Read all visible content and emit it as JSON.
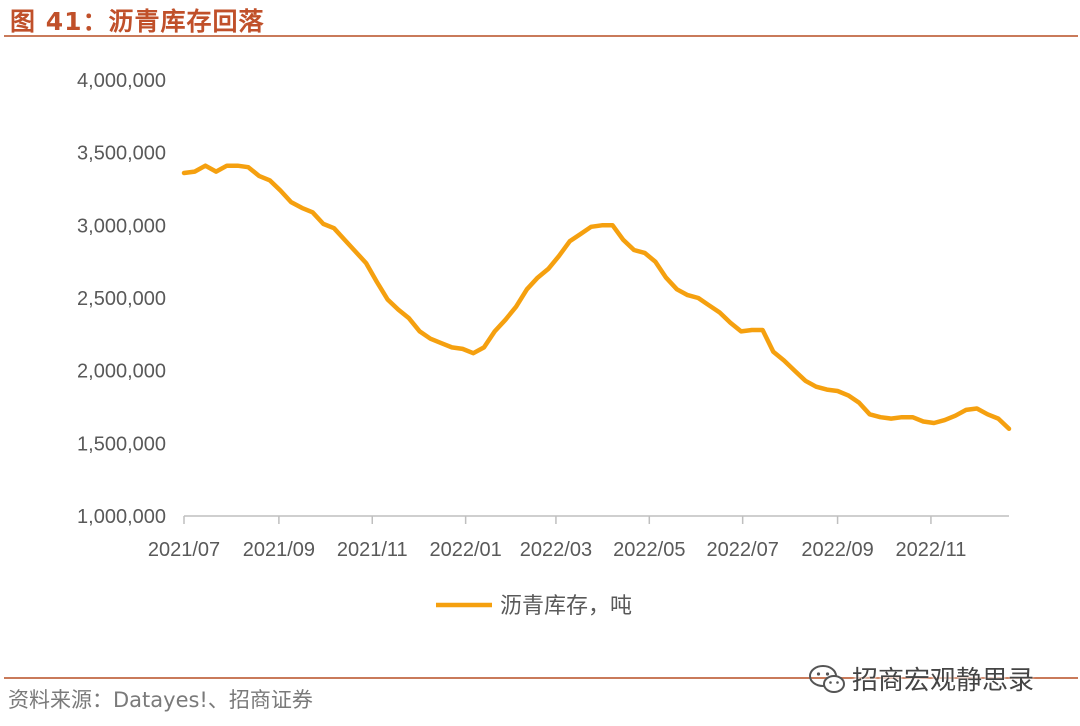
{
  "header": {
    "title": "图 41：沥青库存回落"
  },
  "footer": {
    "source": "资料来源：Datayes!、招商证券"
  },
  "watermark": {
    "text": "招商宏观静思录",
    "icon": "wechat-icon"
  },
  "colors": {
    "line": "#F5A00F",
    "accent": "#C0502A",
    "axis": "#BFBFBF",
    "text": "#595959"
  },
  "chart_data": {
    "type": "line",
    "title": "",
    "xlabel": "",
    "ylabel": "",
    "ylim": [
      1000000,
      4000000
    ],
    "y_ticks": [
      "1,000,000",
      "1,500,000",
      "2,000,000",
      "2,500,000",
      "3,000,000",
      "3,500,000",
      "4,000,000"
    ],
    "x_ticks": [
      "2021/07",
      "2021/09",
      "2021/11",
      "2022/01",
      "2022/03",
      "2022/05",
      "2022/07",
      "2022/09",
      "2022/11"
    ],
    "grid": false,
    "legend": "bottom",
    "series": [
      {
        "name": "沥青库存，吨",
        "color": "#F5A00F",
        "points": [
          [
            "2021-07-01",
            3360000
          ],
          [
            "2021-07-08",
            3370000
          ],
          [
            "2021-07-15",
            3410000
          ],
          [
            "2021-07-22",
            3370000
          ],
          [
            "2021-07-29",
            3410000
          ],
          [
            "2021-08-05",
            3410000
          ],
          [
            "2021-08-12",
            3400000
          ],
          [
            "2021-08-19",
            3340000
          ],
          [
            "2021-08-26",
            3310000
          ],
          [
            "2021-09-02",
            3240000
          ],
          [
            "2021-09-09",
            3160000
          ],
          [
            "2021-09-16",
            3120000
          ],
          [
            "2021-09-23",
            3090000
          ],
          [
            "2021-09-30",
            3010000
          ],
          [
            "2021-10-07",
            2980000
          ],
          [
            "2021-10-14",
            2900000
          ],
          [
            "2021-10-21",
            2820000
          ],
          [
            "2021-10-28",
            2740000
          ],
          [
            "2021-11-04",
            2610000
          ],
          [
            "2021-11-11",
            2490000
          ],
          [
            "2021-11-18",
            2420000
          ],
          [
            "2021-11-25",
            2360000
          ],
          [
            "2021-12-02",
            2270000
          ],
          [
            "2021-12-09",
            2220000
          ],
          [
            "2021-12-16",
            2190000
          ],
          [
            "2021-12-23",
            2160000
          ],
          [
            "2021-12-30",
            2150000
          ],
          [
            "2022-01-06",
            2120000
          ],
          [
            "2022-01-13",
            2160000
          ],
          [
            "2022-01-20",
            2270000
          ],
          [
            "2022-01-27",
            2350000
          ],
          [
            "2022-02-03",
            2440000
          ],
          [
            "2022-02-10",
            2560000
          ],
          [
            "2022-02-17",
            2640000
          ],
          [
            "2022-02-24",
            2700000
          ],
          [
            "2022-03-03",
            2790000
          ],
          [
            "2022-03-10",
            2890000
          ],
          [
            "2022-03-17",
            2940000
          ],
          [
            "2022-03-24",
            2990000
          ],
          [
            "2022-03-31",
            3000000
          ],
          [
            "2022-04-07",
            3000000
          ],
          [
            "2022-04-14",
            2900000
          ],
          [
            "2022-04-21",
            2830000
          ],
          [
            "2022-04-28",
            2810000
          ],
          [
            "2022-05-05",
            2750000
          ],
          [
            "2022-05-12",
            2640000
          ],
          [
            "2022-05-19",
            2560000
          ],
          [
            "2022-05-26",
            2520000
          ],
          [
            "2022-06-02",
            2500000
          ],
          [
            "2022-06-09",
            2450000
          ],
          [
            "2022-06-16",
            2400000
          ],
          [
            "2022-06-23",
            2330000
          ],
          [
            "2022-06-30",
            2270000
          ],
          [
            "2022-07-07",
            2280000
          ],
          [
            "2022-07-14",
            2280000
          ],
          [
            "2022-07-21",
            2130000
          ],
          [
            "2022-07-28",
            2070000
          ],
          [
            "2022-08-04",
            2000000
          ],
          [
            "2022-08-11",
            1930000
          ],
          [
            "2022-08-18",
            1890000
          ],
          [
            "2022-08-25",
            1870000
          ],
          [
            "2022-09-01",
            1860000
          ],
          [
            "2022-09-08",
            1830000
          ],
          [
            "2022-09-15",
            1780000
          ],
          [
            "2022-09-22",
            1700000
          ],
          [
            "2022-09-29",
            1680000
          ],
          [
            "2022-10-06",
            1670000
          ],
          [
            "2022-10-13",
            1680000
          ],
          [
            "2022-10-20",
            1680000
          ],
          [
            "2022-10-27",
            1650000
          ],
          [
            "2022-11-03",
            1640000
          ],
          [
            "2022-11-10",
            1660000
          ],
          [
            "2022-11-17",
            1690000
          ],
          [
            "2022-11-24",
            1730000
          ],
          [
            "2022-12-01",
            1740000
          ],
          [
            "2022-12-08",
            1700000
          ],
          [
            "2022-12-15",
            1670000
          ],
          [
            "2022-12-22",
            1600000
          ]
        ]
      }
    ]
  }
}
